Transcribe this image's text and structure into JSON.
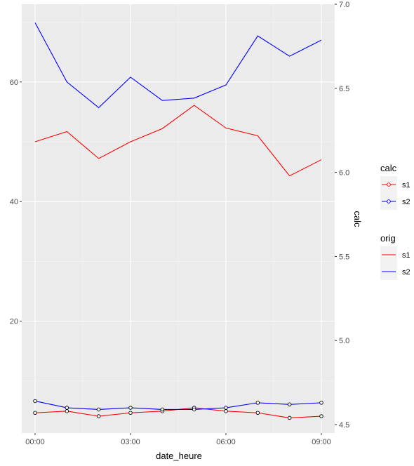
{
  "chart_data": {
    "type": "line",
    "xlabel": "date_heure",
    "ylabel_left": "",
    "ylabel_right": "calc",
    "x_ticks": [
      "00:00",
      "03:00",
      "06:00",
      "09:00"
    ],
    "x": [
      "00:00",
      "01:00",
      "02:00",
      "03:00",
      "04:00",
      "05:00",
      "06:00",
      "07:00",
      "08:00",
      "09:00"
    ],
    "y_left_ticks": [
      "20",
      "40",
      "60"
    ],
    "y_right_ticks": [
      "4.5",
      "5.0",
      "5.5",
      "6.0",
      "6.5",
      "7.0"
    ],
    "y_left_range": [
      1.3,
      73
    ],
    "y_right_range": [
      4.45,
      7.0
    ],
    "grid": true,
    "legend_placement": "right",
    "series_orig": [
      {
        "name": "s1",
        "color": "#ff0000",
        "values": [
          50.0,
          51.7,
          47.2,
          50.0,
          52.2,
          56.1,
          52.3,
          51.0,
          44.3,
          47.0
        ]
      },
      {
        "name": "s2",
        "color": "#0000ff",
        "values": [
          69.9,
          60.0,
          55.7,
          60.8,
          56.9,
          57.3,
          59.5,
          67.7,
          64.3,
          67.0
        ]
      }
    ],
    "series_calc": [
      {
        "name": "s1",
        "color": "#ff0000",
        "values": [
          4.57,
          4.58,
          4.55,
          4.57,
          4.58,
          4.6,
          4.58,
          4.57,
          4.54,
          4.55
        ]
      },
      {
        "name": "s2",
        "color": "#0000ff",
        "values": [
          4.64,
          4.6,
          4.59,
          4.6,
          4.59,
          4.59,
          4.6,
          4.63,
          4.62,
          4.63
        ]
      }
    ],
    "legend": [
      {
        "title": "calc",
        "items": [
          {
            "label": "s1",
            "color": "#ff0000"
          },
          {
            "label": "s2",
            "color": "#0000ff"
          }
        ]
      },
      {
        "title": "orig",
        "items": [
          {
            "label": "s1",
            "color": "#ff0000"
          },
          {
            "label": "s2",
            "color": "#0000ff"
          }
        ]
      }
    ]
  }
}
